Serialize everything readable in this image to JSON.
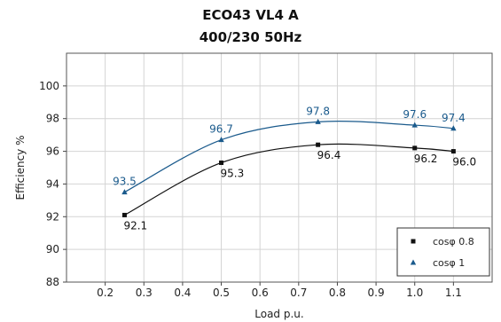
{
  "chart_data": {
    "type": "line",
    "title": "ECO43 VL4 A",
    "subtitle": "400/230 50Hz",
    "xlabel": "Load p.u.",
    "ylabel": "Efficiency %",
    "xlim": [
      0.1,
      1.2
    ],
    "ylim": [
      88,
      102
    ],
    "xticks": [
      "0.2",
      "0.3",
      "0.4",
      "0.5",
      "0.6",
      "0.7",
      "0.8",
      "0.9",
      "1.0",
      "1.1"
    ],
    "yticks": [
      "88",
      "90",
      "92",
      "94",
      "96",
      "98",
      "100"
    ],
    "grid": true,
    "legend_position": "bottom-right",
    "series": [
      {
        "name": "cosφ 0.8",
        "color": "#111111",
        "marker": "square",
        "points": [
          {
            "x": 0.25,
            "y": 92.1,
            "label": "92.1"
          },
          {
            "x": 0.5,
            "y": 95.3,
            "label": "95.3"
          },
          {
            "x": 0.75,
            "y": 96.4,
            "label": "96.4"
          },
          {
            "x": 1.0,
            "y": 96.2,
            "label": "96.2"
          },
          {
            "x": 1.1,
            "y": 96.0,
            "label": "96.0"
          }
        ]
      },
      {
        "name": "cosφ 1",
        "color": "#1a5a8c",
        "marker": "triangle",
        "points": [
          {
            "x": 0.25,
            "y": 93.5,
            "label": "93.5"
          },
          {
            "x": 0.5,
            "y": 96.7,
            "label": "96.7"
          },
          {
            "x": 0.75,
            "y": 97.8,
            "label": "97.8"
          },
          {
            "x": 1.0,
            "y": 97.6,
            "label": "97.6"
          },
          {
            "x": 1.1,
            "y": 97.4,
            "label": "97.4"
          }
        ]
      }
    ]
  }
}
